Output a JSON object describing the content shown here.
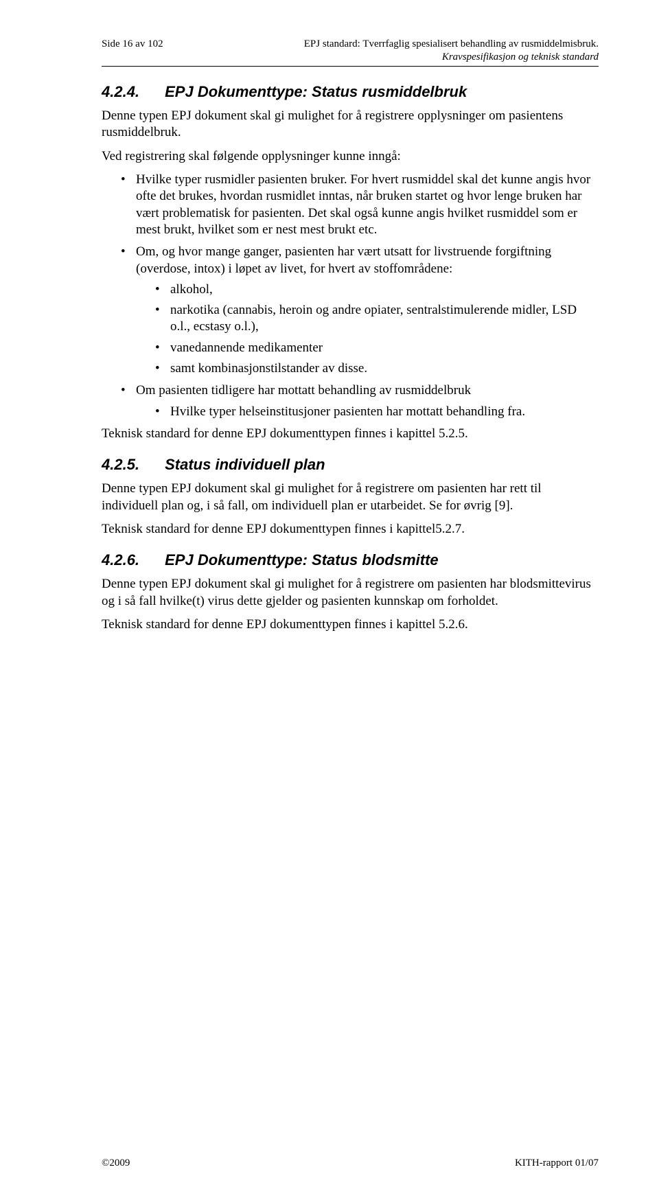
{
  "header": {
    "page_of": "Side 16 av 102",
    "title": "EPJ standard: Tverrfaglig spesialisert behandling av rusmiddelmisbruk.",
    "subtitle": "Kravspesifikasjon og teknisk standard"
  },
  "sections": [
    {
      "num": "4.2.4.",
      "title": "EPJ Dokumenttype: Status rusmiddelbruk",
      "p1": "Denne typen EPJ dokument skal gi mulighet for å registrere opplysninger om pasientens rusmiddelbruk.",
      "p2": "Ved registrering skal følgende opplysninger kunne inngå:",
      "b1": "Hvilke typer rusmidler pasienten bruker. For hvert rusmiddel skal det kunne angis hvor ofte det brukes, hvordan rusmidlet inntas, når bruken startet og hvor lenge bruken har vært problematisk for pasienten. Det skal også kunne angis hvilket rusmiddel som er mest brukt, hvilket som er nest mest brukt etc.",
      "b2": "Om, og hvor mange ganger, pasienten har vært utsatt for livstruende forgiftning (overdose, intox) i løpet av livet, for hvert av stoffområdene:",
      "b2a": "alkohol,",
      "b2b": "narkotika (cannabis, heroin og andre opiater, sentralstimulerende midler, LSD o.l., ecstasy o.l.),",
      "b2c": "vanedannende medikamenter",
      "b2d": "samt kombinasjonstilstander av disse.",
      "b3": "Om pasienten tidligere har mottatt behandling av rusmiddelbruk",
      "b3a": "Hvilke typer helseinstitusjoner pasienten har mottatt behandling fra.",
      "p3": "Teknisk standard for denne EPJ dokumenttypen finnes i kapittel 5.2.5."
    },
    {
      "num": "4.2.5.",
      "title": "Status individuell plan",
      "p1": "Denne typen EPJ dokument skal gi mulighet for å registrere om pasienten har rett til individuell plan og, i så fall, om individuell plan er utarbeidet. Se for øvrig [9].",
      "p2": "Teknisk standard for denne EPJ dokumenttypen finnes i kapittel5.2.7."
    },
    {
      "num": "4.2.6.",
      "title": "EPJ Dokumenttype: Status blodsmitte",
      "p1": "Denne typen EPJ dokument skal gi mulighet for å registrere om pasienten har blodsmittevirus og i så fall hvilke(t) virus dette gjelder og pasienten kunnskap om forholdet.",
      "p2": "Teknisk standard for denne EPJ dokumenttypen finnes i kapittel 5.2.6."
    }
  ],
  "footer": {
    "left": "©2009",
    "right": "KITH-rapport 01/07"
  }
}
